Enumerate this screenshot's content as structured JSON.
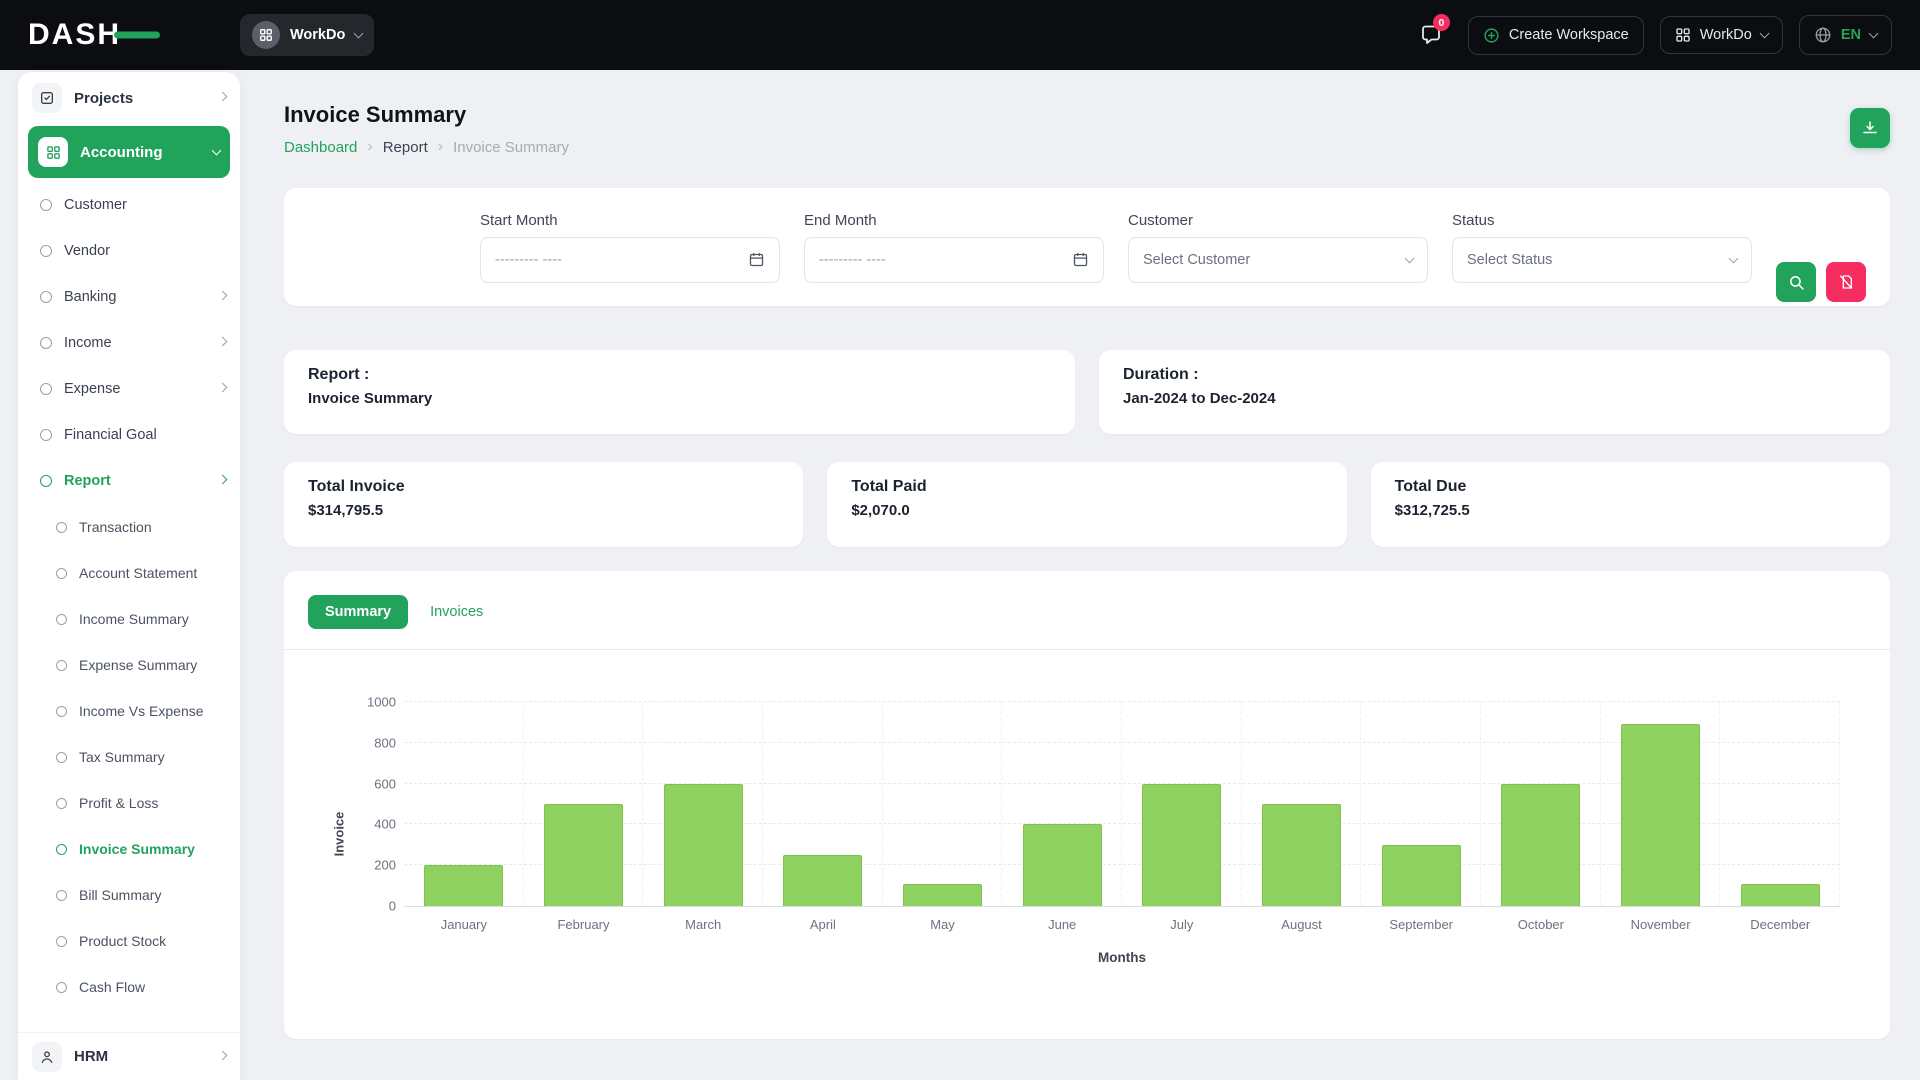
{
  "colors": {
    "accent": "#22a35b",
    "pink": "#f62d60",
    "bar_fill": "#8fd160",
    "bar_border": "#7cc24d",
    "header_bg": "#0b0d10"
  },
  "header": {
    "logo_text": "DASH",
    "workspace_pill_label": "WorkDo",
    "chat_badge": "0",
    "create_workspace_label": "Create Workspace",
    "workspace_switcher_label": "WorkDo",
    "language_label": "EN"
  },
  "sidebar": {
    "projects": "Projects",
    "accounting": "Accounting",
    "accounting_children": [
      "Customer",
      "Vendor",
      "Banking",
      "Income",
      "Expense",
      "Financial Goal",
      "Report"
    ],
    "report_children": [
      "Transaction",
      "Account Statement",
      "Income Summary",
      "Expense Summary",
      "Income Vs Expense",
      "Tax Summary",
      "Profit & Loss",
      "Invoice Summary",
      "Bill Summary",
      "Product Stock",
      "Cash Flow"
    ],
    "hrm": "HRM"
  },
  "page": {
    "title": "Invoice Summary",
    "breadcrumb": [
      "Dashboard",
      "Report",
      "Invoice Summary"
    ],
    "breadcrumb_separator": "›"
  },
  "filters": {
    "start_month_label": "Start Month",
    "end_month_label": "End Month",
    "customer_label": "Customer",
    "status_label": "Status",
    "date_placeholder": "--------- ----",
    "customer_placeholder": "Select Customer",
    "status_placeholder": "Select Status"
  },
  "summary": {
    "report_label": "Report :",
    "report_value": "Invoice Summary",
    "duration_label": "Duration :",
    "duration_value": "Jan-2024 to Dec-2024",
    "totals": [
      {
        "label": "Total Invoice",
        "value": "$314,795.5"
      },
      {
        "label": "Total Paid",
        "value": "$2,070.0"
      },
      {
        "label": "Total Due",
        "value": "$312,725.5"
      }
    ]
  },
  "tabs": {
    "summary": "Summary",
    "invoices": "Invoices"
  },
  "chart_data": {
    "type": "bar",
    "title": "",
    "categories": [
      "January",
      "February",
      "March",
      "April",
      "May",
      "June",
      "July",
      "August",
      "September",
      "October",
      "November",
      "December"
    ],
    "values": [
      200,
      500,
      600,
      250,
      110,
      400,
      600,
      500,
      300,
      600,
      890,
      110
    ],
    "xlabel": "Months",
    "ylabel": "Invoice",
    "ylim": [
      0,
      1000
    ],
    "yticks": [
      0,
      200,
      400,
      600,
      800,
      1000
    ],
    "grid": true,
    "legend": false,
    "bar_color": "#8fd160",
    "bar_border": "#7cc24d"
  }
}
